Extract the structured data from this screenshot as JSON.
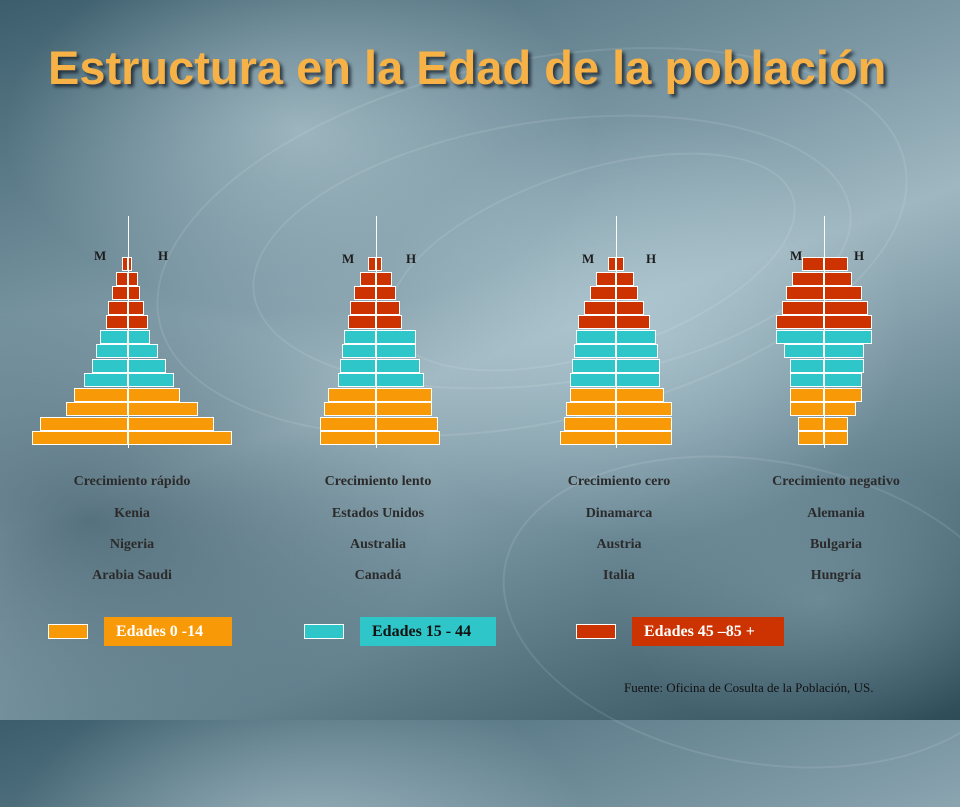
{
  "title": "Estructura en la Edad de la población",
  "colors": {
    "young": "#f89a08",
    "middle": "#2ec6c8",
    "old": "#cc3300"
  },
  "pyramids": [
    {
      "female_label": "M",
      "male_label": "H",
      "caption": "Crecimiento rápido",
      "countries": [
        "Kenia",
        "Nigeria",
        "Arabia Saudi"
      ],
      "rows": [
        {
          "group": "old",
          "f": 6,
          "m": 4
        },
        {
          "group": "old",
          "f": 12,
          "m": 10
        },
        {
          "group": "old",
          "f": 16,
          "m": 12
        },
        {
          "group": "old",
          "f": 20,
          "m": 16
        },
        {
          "group": "old",
          "f": 22,
          "m": 20
        },
        {
          "group": "middle",
          "f": 28,
          "m": 22
        },
        {
          "group": "middle",
          "f": 32,
          "m": 30
        },
        {
          "group": "middle",
          "f": 36,
          "m": 38
        },
        {
          "group": "middle",
          "f": 44,
          "m": 46
        },
        {
          "group": "young",
          "f": 54,
          "m": 52
        },
        {
          "group": "young",
          "f": 62,
          "m": 70
        },
        {
          "group": "young",
          "f": 88,
          "m": 86
        },
        {
          "group": "young",
          "f": 96,
          "m": 104
        }
      ]
    },
    {
      "female_label": "M",
      "male_label": "H",
      "caption": "Crecimiento lento",
      "countries": [
        "Estados Unidos",
        "Australia",
        "Canadá"
      ],
      "rows": [
        {
          "group": "old",
          "f": 8,
          "m": 6
        },
        {
          "group": "old",
          "f": 16,
          "m": 16
        },
        {
          "group": "old",
          "f": 22,
          "m": 20
        },
        {
          "group": "old",
          "f": 26,
          "m": 24
        },
        {
          "group": "old",
          "f": 28,
          "m": 26
        },
        {
          "group": "middle",
          "f": 32,
          "m": 40
        },
        {
          "group": "middle",
          "f": 34,
          "m": 40
        },
        {
          "group": "middle",
          "f": 36,
          "m": 44
        },
        {
          "group": "middle",
          "f": 38,
          "m": 48
        },
        {
          "group": "young",
          "f": 48,
          "m": 56
        },
        {
          "group": "young",
          "f": 52,
          "m": 56
        },
        {
          "group": "young",
          "f": 56,
          "m": 62
        },
        {
          "group": "young",
          "f": 56,
          "m": 64
        }
      ]
    },
    {
      "female_label": "M",
      "male_label": "H",
      "caption": "Crecimiento cero",
      "countries": [
        "Dinamarca",
        "Austria",
        "Italia"
      ],
      "rows": [
        {
          "group": "old",
          "f": 8,
          "m": 8
        },
        {
          "group": "old",
          "f": 20,
          "m": 18
        },
        {
          "group": "old",
          "f": 26,
          "m": 22
        },
        {
          "group": "old",
          "f": 32,
          "m": 28
        },
        {
          "group": "old",
          "f": 38,
          "m": 34
        },
        {
          "group": "middle",
          "f": 40,
          "m": 40
        },
        {
          "group": "middle",
          "f": 42,
          "m": 42
        },
        {
          "group": "middle",
          "f": 44,
          "m": 44
        },
        {
          "group": "middle",
          "f": 46,
          "m": 44
        },
        {
          "group": "young",
          "f": 46,
          "m": 48
        },
        {
          "group": "young",
          "f": 50,
          "m": 56
        },
        {
          "group": "young",
          "f": 52,
          "m": 56
        },
        {
          "group": "young",
          "f": 56,
          "m": 56
        }
      ]
    },
    {
      "female_label": "M",
      "male_label": "H",
      "caption": "Crecimiento negativo",
      "countries": [
        "Alemania",
        "Bulgaria",
        "Hungría"
      ],
      "rows": [
        {
          "group": "old",
          "f": 22,
          "m": 24
        },
        {
          "group": "old",
          "f": 32,
          "m": 28
        },
        {
          "group": "old",
          "f": 38,
          "m": 38
        },
        {
          "group": "old",
          "f": 42,
          "m": 44
        },
        {
          "group": "old",
          "f": 48,
          "m": 48
        },
        {
          "group": "middle",
          "f": 48,
          "m": 48
        },
        {
          "group": "middle",
          "f": 40,
          "m": 40
        },
        {
          "group": "middle",
          "f": 34,
          "m": 40
        },
        {
          "group": "middle",
          "f": 34,
          "m": 38
        },
        {
          "group": "young",
          "f": 34,
          "m": 38
        },
        {
          "group": "young",
          "f": 34,
          "m": 32
        },
        {
          "group": "young",
          "f": 26,
          "m": 24
        },
        {
          "group": "young",
          "f": 26,
          "m": 24
        }
      ]
    }
  ],
  "legend": [
    {
      "group": "young",
      "label": "Edades 0 -14"
    },
    {
      "group": "middle",
      "label": "Edades 15 - 44"
    },
    {
      "group": "old",
      "label": "Edades 45 –85 +"
    }
  ],
  "source": "Fuente: Oficina de Cosulta de la Población, US."
}
